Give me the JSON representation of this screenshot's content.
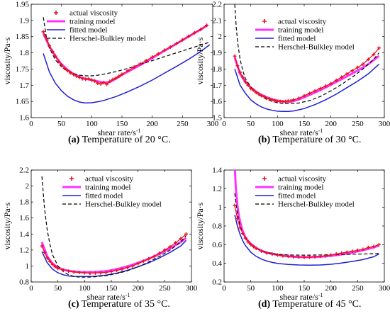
{
  "chart_data": [
    {
      "type": "line",
      "caption_letter": "(a)",
      "caption_text": "Temperature of 20 °C.",
      "xlabel": "shear rate/s",
      "xlabel_sup": "-1",
      "ylabel": "viscosity/Pa·s",
      "xlim": [
        0,
        300
      ],
      "ylim": [
        1.6,
        1.95
      ],
      "xticks": [
        0,
        50,
        100,
        150,
        200,
        250,
        300
      ],
      "yticks": [
        1.6,
        1.65,
        1.7,
        1.75,
        1.8,
        1.85,
        1.9,
        1.95
      ],
      "legend": [
        "actual viscosity",
        "training model",
        "fitted model",
        "Herschel-Bulkley model"
      ],
      "series": [
        {
          "name": "actual viscosity",
          "x": [
            20,
            23,
            26,
            30,
            35,
            40,
            45,
            50,
            55,
            60,
            65,
            70,
            75,
            80,
            85,
            90,
            95,
            100,
            105,
            110,
            115,
            120,
            125,
            130,
            135,
            140,
            145,
            150,
            160,
            170,
            180,
            190,
            200,
            210,
            220,
            230,
            240,
            250,
            260,
            270,
            280,
            290
          ],
          "y": [
            1.865,
            1.852,
            1.84,
            1.822,
            1.805,
            1.79,
            1.773,
            1.763,
            1.752,
            1.745,
            1.738,
            1.733,
            1.728,
            1.724,
            1.72,
            1.718,
            1.72,
            1.716,
            1.713,
            1.706,
            1.704,
            1.708,
            1.703,
            1.712,
            1.718,
            1.722,
            1.728,
            1.734,
            1.745,
            1.756,
            1.766,
            1.776,
            1.787,
            1.797,
            1.808,
            1.818,
            1.829,
            1.84,
            1.851,
            1.862,
            1.872,
            1.885
          ]
        },
        {
          "name": "training model",
          "x": [
            20,
            30,
            40,
            50,
            60,
            70,
            80,
            90,
            100,
            110,
            120,
            130,
            140,
            150,
            160,
            180,
            200,
            220,
            240,
            260,
            280,
            292
          ],
          "y": [
            1.86,
            1.82,
            1.79,
            1.765,
            1.748,
            1.735,
            1.726,
            1.72,
            1.716,
            1.712,
            1.708,
            1.71,
            1.72,
            1.732,
            1.742,
            1.762,
            1.784,
            1.806,
            1.828,
            1.85,
            1.872,
            1.886
          ]
        },
        {
          "name": "fitted model",
          "x": [
            20,
            30,
            40,
            50,
            60,
            70,
            80,
            90,
            100,
            110,
            120,
            140,
            160,
            180,
            200,
            220,
            240,
            260,
            280,
            295
          ],
          "y": [
            1.798,
            1.741,
            1.706,
            1.683,
            1.666,
            1.655,
            1.648,
            1.645,
            1.646,
            1.649,
            1.653,
            1.665,
            1.68,
            1.697,
            1.716,
            1.737,
            1.758,
            1.78,
            1.804,
            1.825
          ]
        },
        {
          "name": "Herschel-Bulkley model",
          "x": [
            20,
            25,
            30,
            40,
            50,
            60,
            70,
            80,
            90,
            100,
            110,
            120,
            140,
            160,
            180,
            200,
            220,
            240,
            260,
            280,
            295
          ],
          "y": [
            1.91,
            1.85,
            1.815,
            1.778,
            1.757,
            1.744,
            1.736,
            1.731,
            1.729,
            1.729,
            1.731,
            1.734,
            1.742,
            1.752,
            1.764,
            1.776,
            1.788,
            1.8,
            1.812,
            1.824,
            1.833
          ]
        }
      ]
    },
    {
      "type": "line",
      "caption_letter": "(b)",
      "caption_text": "Temperature of 30 °C.",
      "xlabel": "shear rate/s",
      "xlabel_sup": "-1",
      "ylabel": "viscosity/Pa·s",
      "xlim": [
        0,
        300
      ],
      "ylim": [
        1.5,
        2.2
      ],
      "xticks": [
        0,
        50,
        100,
        150,
        200,
        250,
        300
      ],
      "yticks": [
        1.5,
        1.6,
        1.7,
        1.8,
        1.9,
        2,
        2.1,
        2.2
      ],
      "legend": [
        "actual viscosity",
        "training model",
        "fitted model",
        "Herschel-Bulkley model"
      ],
      "series": [
        {
          "name": "actual viscosity",
          "x": [
            20,
            25,
            30,
            35,
            40,
            45,
            50,
            55,
            60,
            65,
            70,
            75,
            80,
            85,
            90,
            95,
            100,
            105,
            110,
            115,
            120,
            125,
            130,
            140,
            150,
            160,
            170,
            180,
            190,
            200,
            210,
            220,
            230,
            240,
            250,
            260,
            270,
            280,
            290
          ],
          "y": [
            1.88,
            1.82,
            1.78,
            1.75,
            1.72,
            1.7,
            1.68,
            1.67,
            1.655,
            1.645,
            1.635,
            1.63,
            1.62,
            1.615,
            1.61,
            1.605,
            1.6,
            1.6,
            1.598,
            1.6,
            1.604,
            1.603,
            1.61,
            1.62,
            1.635,
            1.65,
            1.665,
            1.68,
            1.695,
            1.71,
            1.73,
            1.75,
            1.77,
            1.79,
            1.81,
            1.83,
            1.86,
            1.89,
            1.93
          ]
        },
        {
          "name": "training model",
          "x": [
            20,
            30,
            40,
            50,
            60,
            70,
            80,
            90,
            100,
            110,
            120,
            130,
            140,
            150,
            170,
            190,
            210,
            230,
            250,
            270,
            290
          ],
          "y": [
            1.87,
            1.77,
            1.72,
            1.685,
            1.66,
            1.64,
            1.625,
            1.613,
            1.605,
            1.6,
            1.598,
            1.602,
            1.612,
            1.626,
            1.655,
            1.685,
            1.72,
            1.755,
            1.79,
            1.83,
            1.88
          ]
        },
        {
          "name": "fitted model",
          "x": [
            20,
            30,
            40,
            50,
            60,
            70,
            80,
            90,
            100,
            110,
            120,
            130,
            140,
            150,
            170,
            190,
            210,
            230,
            250,
            270,
            290
          ],
          "y": [
            1.8,
            1.7,
            1.65,
            1.61,
            1.585,
            1.566,
            1.553,
            1.545,
            1.54,
            1.538,
            1.538,
            1.541,
            1.548,
            1.556,
            1.58,
            1.61,
            1.645,
            1.685,
            1.725,
            1.77,
            1.83
          ]
        },
        {
          "name": "Herschel-Bulkley model",
          "x": [
            20,
            23,
            26,
            30,
            35,
            40,
            50,
            60,
            70,
            80,
            90,
            100,
            110,
            120,
            140,
            160,
            180,
            200,
            220,
            240,
            260,
            280,
            290
          ],
          "y": [
            2.2,
            2.05,
            1.95,
            1.86,
            1.79,
            1.74,
            1.69,
            1.655,
            1.63,
            1.612,
            1.6,
            1.592,
            1.587,
            1.586,
            1.59,
            1.605,
            1.63,
            1.665,
            1.705,
            1.75,
            1.8,
            1.86,
            1.9
          ]
        }
      ]
    },
    {
      "type": "line",
      "caption_letter": "(c)",
      "caption_text": "Temperature of 35 °C.",
      "xlabel": "shear rate/s",
      "xlabel_sup": "-1",
      "ylabel": "viscosity/Pa·s",
      "xlim": [
        0,
        300
      ],
      "ylim": [
        0.8,
        2.2
      ],
      "xticks": [
        0,
        50,
        100,
        150,
        200,
        250,
        300
      ],
      "yticks": [
        0.8,
        1,
        1.2,
        1.4,
        1.6,
        1.8,
        2,
        2.2
      ],
      "legend": [
        "actual viscosity",
        "training model",
        "fitted model",
        "Herschel-Bulkley model"
      ],
      "series": [
        {
          "name": "actual viscosity",
          "x": [
            20,
            25,
            30,
            35,
            40,
            45,
            50,
            60,
            70,
            80,
            90,
            100,
            110,
            120,
            130,
            140,
            150,
            160,
            170,
            180,
            190,
            200,
            210,
            220,
            230,
            240,
            250,
            260,
            270,
            280,
            290
          ],
          "y": [
            1.25,
            1.17,
            1.1,
            1.06,
            1.02,
            0.99,
            0.97,
            0.95,
            0.935,
            0.925,
            0.92,
            0.915,
            0.91,
            0.912,
            0.915,
            0.92,
            0.93,
            0.945,
            0.96,
            0.98,
            1.0,
            1.03,
            1.06,
            1.09,
            1.12,
            1.16,
            1.2,
            1.24,
            1.29,
            1.34,
            1.4
          ]
        },
        {
          "name": "training model",
          "x": [
            20,
            30,
            40,
            50,
            60,
            70,
            80,
            90,
            100,
            120,
            140,
            160,
            180,
            200,
            220,
            240,
            260,
            280,
            290
          ],
          "y": [
            1.3,
            1.12,
            1.03,
            0.98,
            0.955,
            0.94,
            0.93,
            0.925,
            0.922,
            0.925,
            0.935,
            0.96,
            0.995,
            1.04,
            1.09,
            1.15,
            1.22,
            1.3,
            1.35
          ]
        },
        {
          "name": "fitted model",
          "x": [
            20,
            30,
            40,
            50,
            60,
            70,
            80,
            90,
            100,
            120,
            140,
            160,
            180,
            200,
            220,
            240,
            260,
            280,
            290
          ],
          "y": [
            1.18,
            1.04,
            0.96,
            0.915,
            0.89,
            0.875,
            0.87,
            0.868,
            0.868,
            0.872,
            0.885,
            0.91,
            0.945,
            0.99,
            1.04,
            1.1,
            1.17,
            1.25,
            1.32
          ]
        },
        {
          "name": "Herschel-Bulkley model",
          "x": [
            20,
            25,
            30,
            35,
            40,
            50,
            60,
            70,
            80,
            90,
            100,
            110,
            120,
            140,
            160,
            180,
            200,
            220,
            240,
            260,
            280,
            290
          ],
          "y": [
            2.12,
            1.72,
            1.45,
            1.27,
            1.14,
            1.0,
            0.93,
            0.89,
            0.87,
            0.86,
            0.86,
            0.862,
            0.866,
            0.88,
            0.905,
            0.94,
            0.99,
            1.05,
            1.12,
            1.2,
            1.3,
            1.38
          ]
        }
      ]
    },
    {
      "type": "line",
      "caption_letter": "(d)",
      "caption_text": "Temperature of 45 °C.",
      "xlabel": "shear rate/s",
      "xlabel_sup": "-1",
      "ylabel": "viscosity/Pa·s",
      "xlim": [
        0,
        300
      ],
      "ylim": [
        0.2,
        1.4
      ],
      "xticks": [
        0,
        50,
        100,
        150,
        200,
        250,
        300
      ],
      "yticks": [
        0.2,
        0.4,
        0.6,
        0.8,
        1,
        1.2,
        1.4
      ],
      "legend": [
        "actual viscosity",
        "training model",
        "fitted model",
        "Herschel-Bulkley model"
      ],
      "series": [
        {
          "name": "actual viscosity",
          "x": [
            20,
            25,
            30,
            35,
            40,
            45,
            50,
            55,
            60,
            70,
            80,
            90,
            100,
            110,
            120,
            130,
            140,
            150,
            160,
            170,
            180,
            190,
            200,
            210,
            220,
            230,
            240,
            250,
            260,
            270,
            280,
            290
          ],
          "y": [
            1.02,
            0.88,
            0.78,
            0.72,
            0.67,
            0.63,
            0.6,
            0.58,
            0.56,
            0.53,
            0.51,
            0.5,
            0.49,
            0.48,
            0.475,
            0.47,
            0.468,
            0.465,
            0.466,
            0.47,
            0.475,
            0.48,
            0.49,
            0.5,
            0.51,
            0.52,
            0.53,
            0.54,
            0.55,
            0.57,
            0.58,
            0.6
          ]
        },
        {
          "name": "training model",
          "x": [
            20,
            22,
            25,
            28,
            32,
            36,
            40,
            45,
            50,
            60,
            70,
            80,
            100,
            120,
            140,
            160,
            180,
            200,
            220,
            240,
            260,
            280,
            290
          ],
          "y": [
            1.43,
            1.2,
            1.02,
            0.9,
            0.8,
            0.73,
            0.68,
            0.64,
            0.61,
            0.565,
            0.535,
            0.515,
            0.49,
            0.475,
            0.468,
            0.466,
            0.47,
            0.48,
            0.495,
            0.515,
            0.54,
            0.57,
            0.59
          ]
        },
        {
          "name": "fitted model",
          "x": [
            20,
            25,
            30,
            35,
            40,
            50,
            60,
            70,
            80,
            90,
            100,
            120,
            140,
            160,
            180,
            200,
            220,
            240,
            260,
            280,
            290
          ],
          "y": [
            0.92,
            0.8,
            0.71,
            0.64,
            0.59,
            0.52,
            0.475,
            0.445,
            0.425,
            0.41,
            0.4,
            0.388,
            0.382,
            0.38,
            0.382,
            0.39,
            0.403,
            0.42,
            0.44,
            0.47,
            0.5
          ]
        },
        {
          "name": "Herschel-Bulkley model",
          "x": [
            20,
            25,
            30,
            35,
            40,
            50,
            60,
            70,
            80,
            90,
            100,
            120,
            140,
            160,
            180,
            200,
            220,
            240,
            260,
            280,
            290
          ],
          "y": [
            1.15,
            0.93,
            0.8,
            0.72,
            0.67,
            0.6,
            0.56,
            0.535,
            0.515,
            0.505,
            0.498,
            0.49,
            0.488,
            0.488,
            0.49,
            0.492,
            0.495,
            0.498,
            0.5,
            0.503,
            0.505
          ]
        }
      ]
    }
  ],
  "colors": {
    "actual": "#e8101b",
    "training": "#ff33ff",
    "fitted": "#1f1fd6",
    "hb": "#000000",
    "axes": "#000000"
  }
}
